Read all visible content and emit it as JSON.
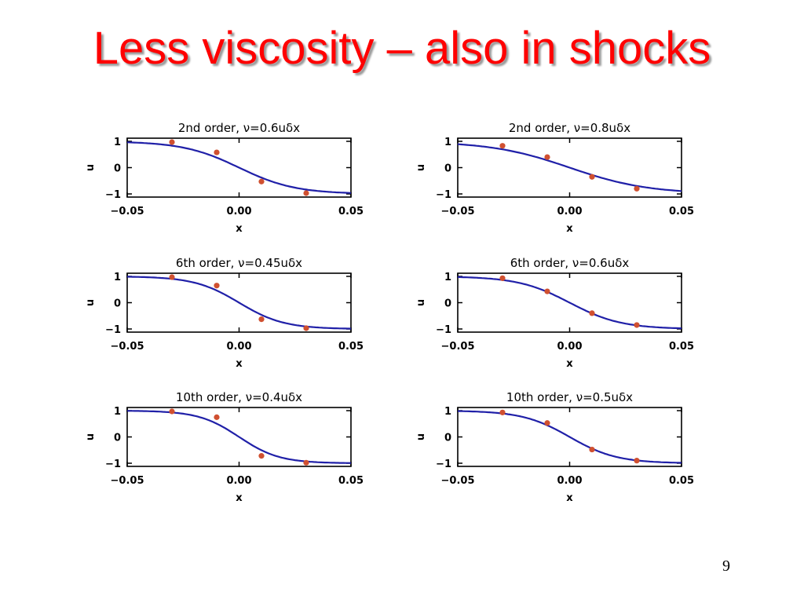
{
  "slide": {
    "title": "Less viscosity – also in shocks",
    "page_number": "9"
  },
  "chart_data": [
    {
      "type": "line",
      "title": "2nd order, ν=0.6uδx",
      "xlabel": "x",
      "ylabel": "u",
      "xlim": [
        -0.05,
        0.05
      ],
      "ylim": [
        -1,
        1
      ],
      "xticks": [
        "-0.05",
        "0.00",
        "0.05"
      ],
      "yticks": [
        "1",
        "0",
        "-1"
      ],
      "series": [
        {
          "style": "line",
          "color": "#2020a8",
          "width_scale": 0.025,
          "x": [
            -0.05,
            0.05
          ],
          "y": [
            1,
            -1
          ]
        },
        {
          "style": "points",
          "color": "#d05030",
          "x": [
            -0.03,
            -0.01,
            0.01,
            0.03
          ],
          "y": [
            0.97,
            0.58,
            -0.53,
            -0.97
          ]
        }
      ]
    },
    {
      "type": "line",
      "title": "2nd order, ν=0.8uδx",
      "xlabel": "x",
      "ylabel": "u",
      "xlim": [
        -0.05,
        0.05
      ],
      "ylim": [
        -1,
        1
      ],
      "xticks": [
        "-0.05",
        "0.00",
        "0.05"
      ],
      "yticks": [
        "1",
        "0",
        "-1"
      ],
      "series": [
        {
          "style": "line",
          "color": "#2020a8",
          "width_scale": 0.035,
          "x": [
            -0.05,
            0.05
          ],
          "y": [
            1,
            -1
          ]
        },
        {
          "style": "points",
          "color": "#d05030",
          "x": [
            -0.03,
            -0.01,
            0.01,
            0.03
          ],
          "y": [
            0.83,
            0.4,
            -0.35,
            -0.8
          ]
        }
      ]
    },
    {
      "type": "line",
      "title": "6th order, ν=0.45uδx",
      "xlabel": "x",
      "ylabel": "u",
      "xlim": [
        -0.05,
        0.05
      ],
      "ylim": [
        -1,
        1
      ],
      "xticks": [
        "-0.05",
        "0.00",
        "0.05"
      ],
      "yticks": [
        "1",
        "0",
        "-1"
      ],
      "series": [
        {
          "style": "line",
          "color": "#2020a8",
          "width_scale": 0.02,
          "x": [
            -0.05,
            0.05
          ],
          "y": [
            1,
            -1
          ]
        },
        {
          "style": "points",
          "color": "#d05030",
          "x": [
            -0.03,
            -0.01,
            0.01,
            0.03
          ],
          "y": [
            0.97,
            0.65,
            -0.63,
            -0.97
          ]
        }
      ]
    },
    {
      "type": "line",
      "title": "6th order, ν=0.6uδx",
      "xlabel": "x",
      "ylabel": "u",
      "xlim": [
        -0.05,
        0.05
      ],
      "ylim": [
        -1,
        1
      ],
      "xticks": [
        "-0.05",
        "0.00",
        "0.05"
      ],
      "yticks": [
        "1",
        "0",
        "-1"
      ],
      "series": [
        {
          "style": "line",
          "color": "#2020a8",
          "width_scale": 0.023,
          "x": [
            -0.05,
            0.05
          ],
          "y": [
            1,
            -1
          ]
        },
        {
          "style": "points",
          "color": "#d05030",
          "x": [
            -0.03,
            -0.01,
            0.01,
            0.03
          ],
          "y": [
            0.93,
            0.43,
            -0.4,
            -0.85
          ]
        }
      ]
    },
    {
      "type": "line",
      "title": "10th order, ν=0.4uδx",
      "xlabel": "x",
      "ylabel": "u",
      "xlim": [
        -0.05,
        0.05
      ],
      "ylim": [
        -1,
        1
      ],
      "xticks": [
        "-0.05",
        "0.00",
        "0.05"
      ],
      "yticks": [
        "1",
        "0",
        "-1"
      ],
      "series": [
        {
          "style": "line",
          "color": "#2020a8",
          "width_scale": 0.018,
          "x": [
            -0.05,
            0.05
          ],
          "y": [
            1,
            -1
          ]
        },
        {
          "style": "points",
          "color": "#d05030",
          "x": [
            -0.03,
            -0.01,
            0.01,
            0.03
          ],
          "y": [
            0.97,
            0.75,
            -0.72,
            -0.98
          ]
        }
      ]
    },
    {
      "type": "line",
      "title": "10th order, ν=0.5uδx",
      "xlabel": "x",
      "ylabel": "u",
      "xlim": [
        -0.05,
        0.05
      ],
      "ylim": [
        -1,
        1
      ],
      "xticks": [
        "-0.05",
        "0.00",
        "0.05"
      ],
      "yticks": [
        "1",
        "0",
        "-1"
      ],
      "series": [
        {
          "style": "line",
          "color": "#2020a8",
          "width_scale": 0.021,
          "x": [
            -0.05,
            0.05
          ],
          "y": [
            1,
            -1
          ]
        },
        {
          "style": "points",
          "color": "#d05030",
          "x": [
            -0.03,
            -0.01,
            0.01,
            0.03
          ],
          "y": [
            0.93,
            0.53,
            -0.48,
            -0.9
          ]
        }
      ]
    }
  ]
}
